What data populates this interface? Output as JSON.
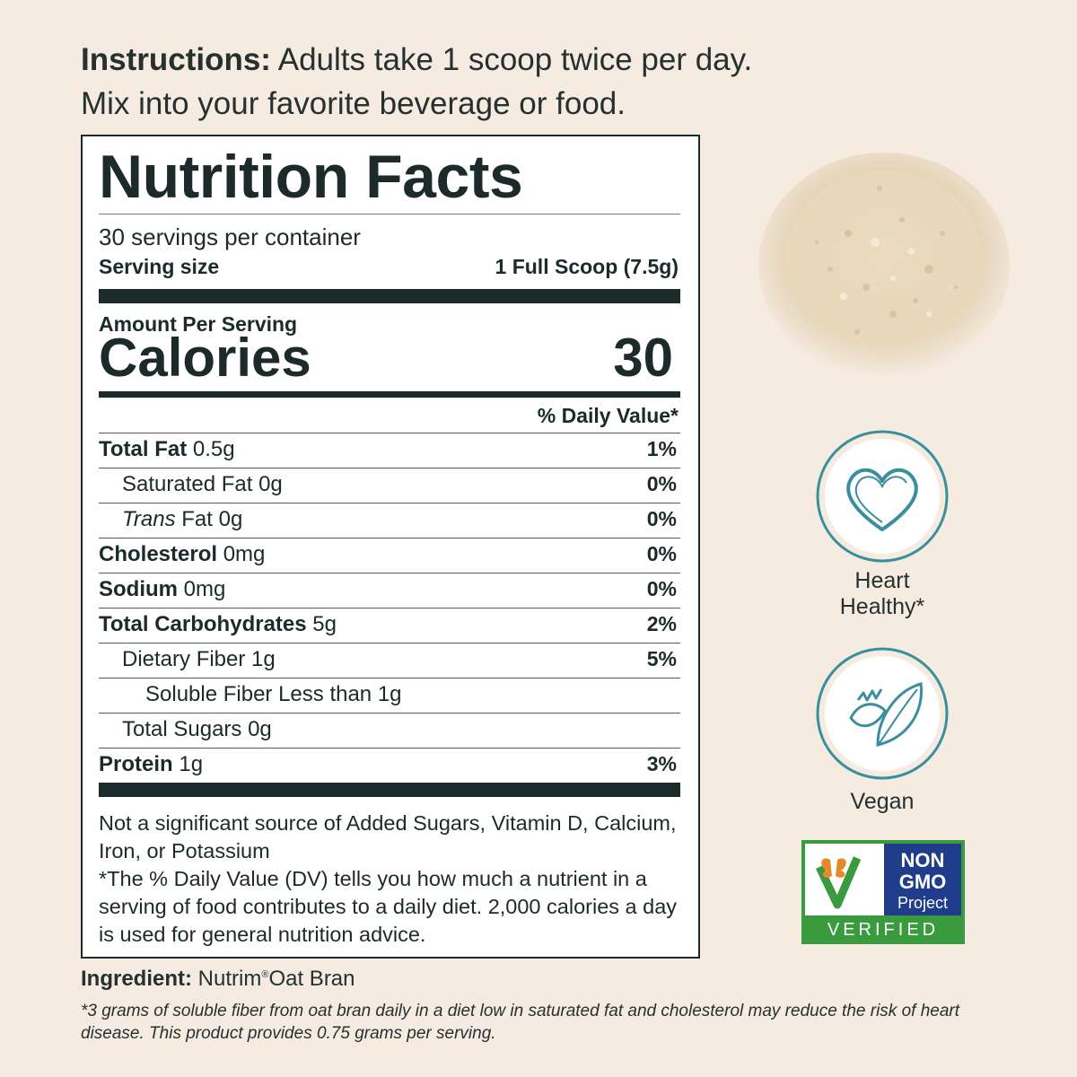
{
  "instructions": {
    "label": "Instructions:",
    "line1": "Adults take 1 scoop twice per day.",
    "line2": "Mix into your favorite beverage or food."
  },
  "nutrition": {
    "title": "Nutrition Facts",
    "servings_per_container": "30 servings per container",
    "serving_size_label": "Serving size",
    "serving_size_value": "1 Full Scoop (7.5g)",
    "amount_per_serving": "Amount Per Serving",
    "calories_label": "Calories",
    "calories_value": "30",
    "daily_value_header": "% Daily Value*",
    "rows": [
      {
        "bold": "Total Fat",
        "italic": "",
        "regular": " 0.5g",
        "pct": "1%"
      },
      {
        "bold": "",
        "italic": "",
        "regular": "Saturated Fat 0g",
        "pct": "0%"
      },
      {
        "bold": "",
        "italic": "Trans",
        "regular": " Fat 0g",
        "pct": "0%"
      },
      {
        "bold": "Cholesterol",
        "italic": "",
        "regular": " 0mg",
        "pct": "0%"
      },
      {
        "bold": "Sodium",
        "italic": "",
        "regular": " 0mg",
        "pct": "0%"
      },
      {
        "bold": "Total Carbohydrates",
        "italic": "",
        "regular": " 5g",
        "pct": "2%"
      },
      {
        "bold": "",
        "italic": "",
        "regular": "Dietary Fiber 1g",
        "pct": "5%"
      },
      {
        "bold": "",
        "italic": "",
        "regular": "Soluble Fiber Less than 1g",
        "pct": ""
      },
      {
        "bold": "",
        "italic": "",
        "regular": "Total Sugars 0g",
        "pct": ""
      },
      {
        "bold": "Protein",
        "italic": "",
        "regular": " 1g",
        "pct": "3%"
      }
    ],
    "footnote_sources": "Not a significant source of Added Sugars, Vitamin D, Calcium, Iron, or Potassium",
    "footnote_dv": "*The % Daily Value (DV) tells you how much a nutrient in a serving of food contributes to a daily diet. 2,000 calories a day is used for general nutrition advice."
  },
  "ingredient": {
    "label": "Ingredient:",
    "name": "Nutrim",
    "registered": "®",
    "name_rest": "Oat Bran"
  },
  "disclaimer": "*3 grams of soluble fiber from oat bran daily in a diet low in saturated fat and cholesterol may reduce the risk of heart disease. This product provides 0.75 grams per serving.",
  "badges": {
    "heart_line1": "Heart",
    "heart_line2": "Healthy*",
    "vegan": "Vegan"
  },
  "non_gmo": {
    "line1": "NON",
    "line2": "GMO",
    "line3": "Project",
    "line4": "VERIFIED"
  },
  "colors": {
    "background": "#f5ebe0",
    "ink": "#1d2a2a",
    "badge_teal": "#3a8f9e",
    "ngmo_blue": "#1f3d8a",
    "ngmo_green": "#3a9a3e"
  }
}
